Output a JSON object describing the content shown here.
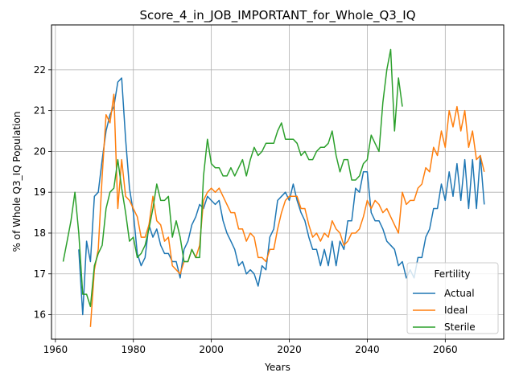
{
  "chart_data": {
    "type": "line",
    "title": "Score_4_in_JOB_IMPORTANT_for_Whole_Q3_IQ",
    "xlabel": "Years",
    "ylabel": "% of Whole Q3_IQ Population",
    "xlim": [
      1959,
      2075
    ],
    "ylim": [
      15.4,
      23.1
    ],
    "xticks": [
      1960,
      1980,
      2000,
      2020,
      2040,
      2060
    ],
    "yticks": [
      16,
      17,
      18,
      19,
      20,
      21,
      22
    ],
    "grid": true,
    "legend": {
      "title": "Fertility",
      "position": "lower-right"
    },
    "series": [
      {
        "name": "Actual",
        "color": "#1f77b4",
        "points": [
          [
            1966,
            17.6
          ],
          [
            1967,
            16.0
          ],
          [
            1968,
            17.8
          ],
          [
            1969,
            17.3
          ],
          [
            1970,
            18.9
          ],
          [
            1971,
            19.0
          ],
          [
            1972,
            19.8
          ],
          [
            1973,
            20.5
          ],
          [
            1974,
            20.9
          ],
          [
            1975,
            21.1
          ],
          [
            1976,
            21.7
          ],
          [
            1977,
            21.8
          ],
          [
            1978,
            20.3
          ],
          [
            1979,
            19.1
          ],
          [
            1980,
            18.5
          ],
          [
            1981,
            17.5
          ],
          [
            1982,
            17.2
          ],
          [
            1983,
            17.4
          ],
          [
            1984,
            18.2
          ],
          [
            1985,
            17.9
          ],
          [
            1986,
            18.1
          ],
          [
            1987,
            17.7
          ],
          [
            1988,
            17.5
          ],
          [
            1989,
            17.5
          ],
          [
            1990,
            17.3
          ],
          [
            1991,
            17.3
          ],
          [
            1992,
            16.9
          ],
          [
            1993,
            17.6
          ],
          [
            1994,
            17.8
          ],
          [
            1995,
            18.2
          ],
          [
            1996,
            18.4
          ],
          [
            1997,
            18.7
          ],
          [
            1998,
            18.6
          ],
          [
            1999,
            18.9
          ],
          [
            2000,
            18.8
          ],
          [
            2001,
            18.7
          ],
          [
            2002,
            18.8
          ],
          [
            2003,
            18.3
          ],
          [
            2004,
            18.0
          ],
          [
            2005,
            17.8
          ],
          [
            2006,
            17.6
          ],
          [
            2007,
            17.2
          ],
          [
            2008,
            17.3
          ],
          [
            2009,
            17.0
          ],
          [
            2010,
            17.1
          ],
          [
            2011,
            17.0
          ],
          [
            2012,
            16.7
          ],
          [
            2013,
            17.2
          ],
          [
            2014,
            17.1
          ],
          [
            2015,
            17.9
          ],
          [
            2016,
            18.1
          ],
          [
            2017,
            18.8
          ],
          [
            2018,
            18.9
          ],
          [
            2019,
            19.0
          ],
          [
            2020,
            18.8
          ],
          [
            2021,
            19.2
          ],
          [
            2022,
            18.8
          ],
          [
            2023,
            18.5
          ],
          [
            2024,
            18.3
          ],
          [
            2025,
            17.9
          ],
          [
            2026,
            17.6
          ],
          [
            2027,
            17.6
          ],
          [
            2028,
            17.2
          ],
          [
            2029,
            17.6
          ],
          [
            2030,
            17.2
          ],
          [
            2031,
            17.8
          ],
          [
            2032,
            17.2
          ],
          [
            2033,
            17.8
          ],
          [
            2034,
            17.6
          ],
          [
            2035,
            18.3
          ],
          [
            2036,
            18.3
          ],
          [
            2037,
            19.1
          ],
          [
            2038,
            19.0
          ],
          [
            2039,
            19.5
          ],
          [
            2040,
            19.5
          ],
          [
            2041,
            18.5
          ],
          [
            2042,
            18.3
          ],
          [
            2043,
            18.3
          ],
          [
            2044,
            18.1
          ],
          [
            2045,
            17.8
          ],
          [
            2046,
            17.7
          ],
          [
            2047,
            17.6
          ],
          [
            2048,
            17.2
          ],
          [
            2049,
            17.3
          ],
          [
            2050,
            16.9
          ],
          [
            2051,
            17.1
          ],
          [
            2052,
            16.9
          ],
          [
            2053,
            17.4
          ],
          [
            2054,
            17.4
          ],
          [
            2055,
            17.9
          ],
          [
            2056,
            18.1
          ],
          [
            2057,
            18.6
          ],
          [
            2058,
            18.6
          ],
          [
            2059,
            19.2
          ],
          [
            2060,
            18.8
          ],
          [
            2061,
            19.5
          ],
          [
            2062,
            18.9
          ],
          [
            2063,
            19.7
          ],
          [
            2064,
            18.8
          ],
          [
            2065,
            19.8
          ],
          [
            2066,
            18.6
          ],
          [
            2067,
            19.8
          ],
          [
            2068,
            18.6
          ],
          [
            2069,
            19.9
          ],
          [
            2070,
            18.7
          ]
        ]
      },
      {
        "name": "Ideal",
        "color": "#ff7f0e",
        "points": [
          [
            1969,
            15.7
          ],
          [
            1970,
            17.1
          ],
          [
            1971,
            17.6
          ],
          [
            1972,
            19.4
          ],
          [
            1973,
            20.9
          ],
          [
            1974,
            20.7
          ],
          [
            1975,
            21.4
          ],
          [
            1976,
            18.6
          ],
          [
            1977,
            19.8
          ],
          [
            1978,
            18.9
          ],
          [
            1979,
            18.8
          ],
          [
            1980,
            18.6
          ],
          [
            1981,
            18.4
          ],
          [
            1982,
            17.9
          ],
          [
            1983,
            17.9
          ],
          [
            1984,
            18.2
          ],
          [
            1985,
            18.9
          ],
          [
            1986,
            18.3
          ],
          [
            1987,
            18.2
          ],
          [
            1988,
            17.8
          ],
          [
            1989,
            17.9
          ],
          [
            1990,
            17.2
          ],
          [
            1991,
            17.1
          ],
          [
            1992,
            17.0
          ],
          [
            1993,
            17.3
          ],
          [
            1994,
            17.3
          ],
          [
            1995,
            17.6
          ],
          [
            1996,
            17.4
          ],
          [
            1997,
            17.7
          ],
          [
            1998,
            18.8
          ],
          [
            1999,
            19.0
          ],
          [
            2000,
            19.1
          ],
          [
            2001,
            19.0
          ],
          [
            2002,
            19.1
          ],
          [
            2003,
            18.9
          ],
          [
            2004,
            18.7
          ],
          [
            2005,
            18.5
          ],
          [
            2006,
            18.5
          ],
          [
            2007,
            18.1
          ],
          [
            2008,
            18.1
          ],
          [
            2009,
            17.8
          ],
          [
            2010,
            18.0
          ],
          [
            2011,
            17.9
          ],
          [
            2012,
            17.4
          ],
          [
            2013,
            17.4
          ],
          [
            2014,
            17.3
          ],
          [
            2015,
            17.6
          ],
          [
            2016,
            17.6
          ],
          [
            2017,
            18.1
          ],
          [
            2018,
            18.5
          ],
          [
            2019,
            18.8
          ],
          [
            2020,
            18.9
          ],
          [
            2021,
            18.9
          ],
          [
            2022,
            18.9
          ],
          [
            2023,
            18.6
          ],
          [
            2024,
            18.6
          ],
          [
            2025,
            18.2
          ],
          [
            2026,
            17.9
          ],
          [
            2027,
            18.0
          ],
          [
            2028,
            17.8
          ],
          [
            2029,
            18.0
          ],
          [
            2030,
            17.9
          ],
          [
            2031,
            18.3
          ],
          [
            2032,
            18.1
          ],
          [
            2033,
            18.0
          ],
          [
            2034,
            17.7
          ],
          [
            2035,
            17.8
          ],
          [
            2036,
            18.0
          ],
          [
            2037,
            18.0
          ],
          [
            2038,
            18.1
          ],
          [
            2039,
            18.4
          ],
          [
            2040,
            18.8
          ],
          [
            2041,
            18.6
          ],
          [
            2042,
            18.8
          ],
          [
            2043,
            18.7
          ],
          [
            2044,
            18.5
          ],
          [
            2045,
            18.6
          ],
          [
            2046,
            18.4
          ],
          [
            2047,
            18.2
          ],
          [
            2048,
            18.0
          ],
          [
            2049,
            19.0
          ],
          [
            2050,
            18.7
          ],
          [
            2051,
            18.8
          ],
          [
            2052,
            18.8
          ],
          [
            2053,
            19.1
          ],
          [
            2054,
            19.2
          ],
          [
            2055,
            19.6
          ],
          [
            2056,
            19.5
          ],
          [
            2057,
            20.1
          ],
          [
            2058,
            19.9
          ],
          [
            2059,
            20.5
          ],
          [
            2060,
            20.1
          ],
          [
            2061,
            21.0
          ],
          [
            2062,
            20.6
          ],
          [
            2063,
            21.1
          ],
          [
            2064,
            20.5
          ],
          [
            2065,
            21.0
          ],
          [
            2066,
            20.1
          ],
          [
            2067,
            20.5
          ],
          [
            2068,
            19.8
          ],
          [
            2069,
            19.9
          ],
          [
            2070,
            19.5
          ]
        ]
      },
      {
        "name": "Sterile",
        "color": "#2ca02c",
        "points": [
          [
            1962,
            17.3
          ],
          [
            1963,
            17.8
          ],
          [
            1964,
            18.3
          ],
          [
            1965,
            19.0
          ],
          [
            1966,
            18.0
          ],
          [
            1967,
            16.5
          ],
          [
            1968,
            16.5
          ],
          [
            1969,
            16.2
          ],
          [
            1970,
            17.2
          ],
          [
            1971,
            17.5
          ],
          [
            1972,
            17.7
          ],
          [
            1973,
            18.6
          ],
          [
            1974,
            19.0
          ],
          [
            1975,
            19.1
          ],
          [
            1976,
            19.8
          ],
          [
            1977,
            19.1
          ],
          [
            1978,
            18.5
          ],
          [
            1979,
            17.8
          ],
          [
            1980,
            17.9
          ],
          [
            1981,
            17.4
          ],
          [
            1982,
            17.5
          ],
          [
            1983,
            17.7
          ],
          [
            1984,
            18.1
          ],
          [
            1985,
            18.6
          ],
          [
            1986,
            19.2
          ],
          [
            1987,
            18.8
          ],
          [
            1988,
            18.8
          ],
          [
            1989,
            18.9
          ],
          [
            1990,
            17.9
          ],
          [
            1991,
            18.3
          ],
          [
            1992,
            17.9
          ],
          [
            1993,
            17.3
          ],
          [
            1994,
            17.3
          ],
          [
            1995,
            17.6
          ],
          [
            1996,
            17.4
          ],
          [
            1997,
            17.4
          ],
          [
            1998,
            19.4
          ],
          [
            1999,
            20.3
          ],
          [
            2000,
            19.7
          ],
          [
            2001,
            19.6
          ],
          [
            2002,
            19.6
          ],
          [
            2003,
            19.4
          ],
          [
            2004,
            19.4
          ],
          [
            2005,
            19.6
          ],
          [
            2006,
            19.4
          ],
          [
            2007,
            19.6
          ],
          [
            2008,
            19.8
          ],
          [
            2009,
            19.4
          ],
          [
            2010,
            19.8
          ],
          [
            2011,
            20.1
          ],
          [
            2012,
            19.9
          ],
          [
            2013,
            20.0
          ],
          [
            2014,
            20.2
          ],
          [
            2015,
            20.2
          ],
          [
            2016,
            20.2
          ],
          [
            2017,
            20.5
          ],
          [
            2018,
            20.7
          ],
          [
            2019,
            20.3
          ],
          [
            2020,
            20.3
          ],
          [
            2021,
            20.3
          ],
          [
            2022,
            20.2
          ],
          [
            2023,
            19.9
          ],
          [
            2024,
            20.0
          ],
          [
            2025,
            19.8
          ],
          [
            2026,
            19.8
          ],
          [
            2027,
            20.0
          ],
          [
            2028,
            20.1
          ],
          [
            2029,
            20.1
          ],
          [
            2030,
            20.2
          ],
          [
            2031,
            20.5
          ],
          [
            2032,
            19.9
          ],
          [
            2033,
            19.5
          ],
          [
            2034,
            19.8
          ],
          [
            2035,
            19.8
          ],
          [
            2036,
            19.3
          ],
          [
            2037,
            19.3
          ],
          [
            2038,
            19.4
          ],
          [
            2039,
            19.7
          ],
          [
            2040,
            19.8
          ],
          [
            2041,
            20.4
          ],
          [
            2042,
            20.2
          ],
          [
            2043,
            20.0
          ],
          [
            2044,
            21.2
          ],
          [
            2045,
            22.0
          ],
          [
            2046,
            22.5
          ],
          [
            2047,
            20.5
          ],
          [
            2048,
            21.8
          ],
          [
            2049,
            21.1
          ]
        ]
      }
    ]
  }
}
